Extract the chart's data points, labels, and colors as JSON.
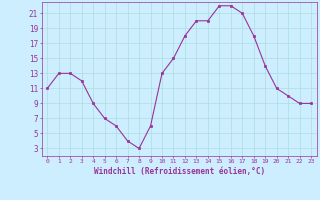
{
  "x": [
    0,
    1,
    2,
    3,
    4,
    5,
    6,
    7,
    8,
    9,
    10,
    11,
    12,
    13,
    14,
    15,
    16,
    17,
    18,
    19,
    20,
    21,
    22,
    23
  ],
  "y": [
    11,
    13,
    13,
    12,
    9,
    7,
    6,
    4,
    3,
    6,
    13,
    15,
    18,
    20,
    20,
    22,
    22,
    21,
    18,
    14,
    11,
    10,
    9,
    9
  ],
  "line_color": "#993399",
  "marker": "s",
  "marker_size": 2.0,
  "xlabel": "Windchill (Refroidissement éolien,°C)",
  "bg_color": "#cceeff",
  "grid_color": "#aadddd",
  "tick_color": "#993399",
  "label_color": "#993399",
  "ylim": [
    2,
    22.5
  ],
  "yticks": [
    3,
    5,
    7,
    9,
    11,
    13,
    15,
    17,
    19,
    21
  ],
  "xticks": [
    0,
    1,
    2,
    3,
    4,
    5,
    6,
    7,
    8,
    9,
    10,
    11,
    12,
    13,
    14,
    15,
    16,
    17,
    18,
    19,
    20,
    21,
    22,
    23
  ],
  "xtick_labels": [
    "0",
    "1",
    "2",
    "3",
    "4",
    "5",
    "6",
    "7",
    "8",
    "9",
    "10",
    "11",
    "12",
    "13",
    "14",
    "15",
    "16",
    "17",
    "18",
    "19",
    "20",
    "21",
    "22",
    "23"
  ],
  "xlabel_fontsize": 5.5,
  "ytick_fontsize": 5.5,
  "xtick_fontsize": 4.5
}
